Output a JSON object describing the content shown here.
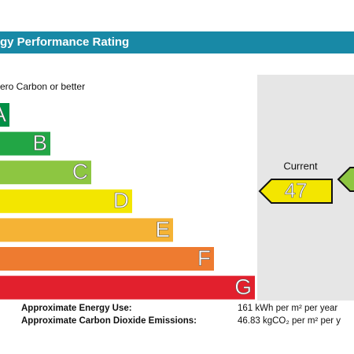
{
  "header": {
    "title": "gy Performance Rating"
  },
  "scale_note": "ero Carbon or better",
  "bands": [
    {
      "letter": "A",
      "color": "#008f45"
    },
    {
      "letter": "B",
      "color": "#22a645"
    },
    {
      "letter": "C",
      "color": "#8dc641"
    },
    {
      "letter": "D",
      "color": "#f3e600"
    },
    {
      "letter": "E",
      "color": "#f5b335"
    },
    {
      "letter": "F",
      "color": "#ee7b30"
    },
    {
      "letter": "G",
      "color": "#e2202d"
    }
  ],
  "current": {
    "label": "Current",
    "rating": "47"
  },
  "footer": {
    "rows": [
      {
        "label": "Approximate Energy Use:",
        "value": "161 kWh per m² per year"
      },
      {
        "label": "Approximate Carbon Dioxide Emissions:",
        "value": "46.83 kgCO₂ per m² per y"
      }
    ]
  }
}
